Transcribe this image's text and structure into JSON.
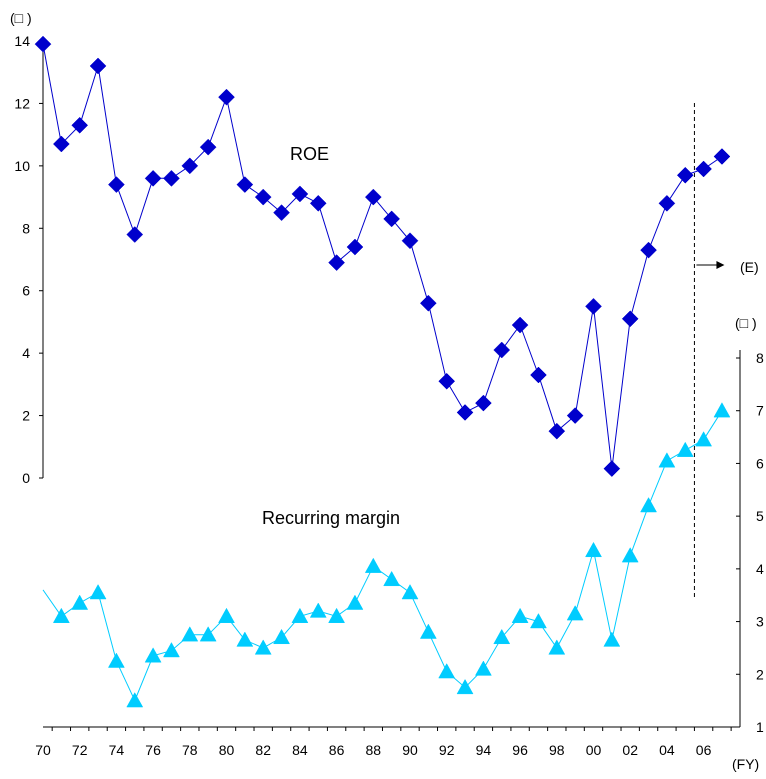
{
  "chart_data": {
    "type": "line",
    "x_tick_labels": [
      "70",
      "72",
      "74",
      "76",
      "78",
      "80",
      "82",
      "84",
      "86",
      "88",
      "90",
      "92",
      "94",
      "96",
      "98",
      "00",
      "02",
      "04",
      "06"
    ],
    "x_unit": "(FY)",
    "left_unit": "(□ )",
    "right_unit": "(□ )",
    "forecast_label": "(E)",
    "left_axis": {
      "min": 0,
      "max": 14,
      "ticks": [
        0,
        2,
        4,
        6,
        8,
        10,
        12,
        14
      ]
    },
    "right_axis": {
      "min": 1,
      "max": 8,
      "ticks": [
        1,
        2,
        3,
        4,
        5,
        6,
        7,
        8
      ]
    },
    "series": [
      {
        "name": "ROE",
        "axis": "left",
        "color": "#0000cc",
        "marker": "diamond",
        "x": [
          1970,
          1971,
          1972,
          1973,
          1974,
          1975,
          1976,
          1977,
          1978,
          1979,
          1980,
          1981,
          1982,
          1983,
          1984,
          1985,
          1986,
          1987,
          1988,
          1989,
          1990,
          1991,
          1992,
          1993,
          1994,
          1995,
          1996,
          1997,
          1998,
          1999,
          2000,
          2001,
          2002,
          2003,
          2004,
          2005,
          2006,
          2007
        ],
        "values": [
          13.9,
          10.7,
          11.3,
          13.2,
          9.4,
          7.8,
          9.6,
          9.6,
          10.0,
          10.6,
          12.2,
          9.4,
          9.0,
          8.5,
          9.1,
          8.8,
          6.9,
          7.4,
          9.0,
          8.3,
          7.6,
          5.6,
          3.1,
          2.1,
          2.4,
          4.1,
          4.9,
          3.3,
          1.5,
          2.0,
          5.5,
          0.3,
          5.1,
          7.3,
          8.8,
          9.7,
          9.9,
          10.3
        ]
      },
      {
        "name": "Recurring margin",
        "axis": "right",
        "color": "#00ccff",
        "marker": "triangle",
        "x": [
          1970,
          1971,
          1972,
          1973,
          1974,
          1975,
          1976,
          1977,
          1978,
          1979,
          1980,
          1981,
          1982,
          1983,
          1984,
          1985,
          1986,
          1987,
          1988,
          1989,
          1990,
          1991,
          1992,
          1993,
          1994,
          1995,
          1996,
          1997,
          1998,
          1999,
          2000,
          2001,
          2002,
          2003,
          2004,
          2005,
          2006,
          2007
        ],
        "values": [
          3.6,
          3.1,
          3.35,
          3.55,
          2.25,
          1.5,
          2.35,
          2.45,
          2.75,
          2.75,
          3.1,
          2.65,
          2.5,
          2.7,
          3.1,
          3.2,
          3.1,
          3.35,
          4.05,
          3.8,
          3.55,
          2.8,
          2.05,
          1.75,
          2.1,
          2.7,
          3.1,
          3.0,
          2.5,
          3.15,
          4.35,
          2.65,
          4.25,
          5.2,
          6.05,
          6.25,
          6.45,
          7.0
        ]
      }
    ],
    "forecast_divider_x": 2005.5
  }
}
